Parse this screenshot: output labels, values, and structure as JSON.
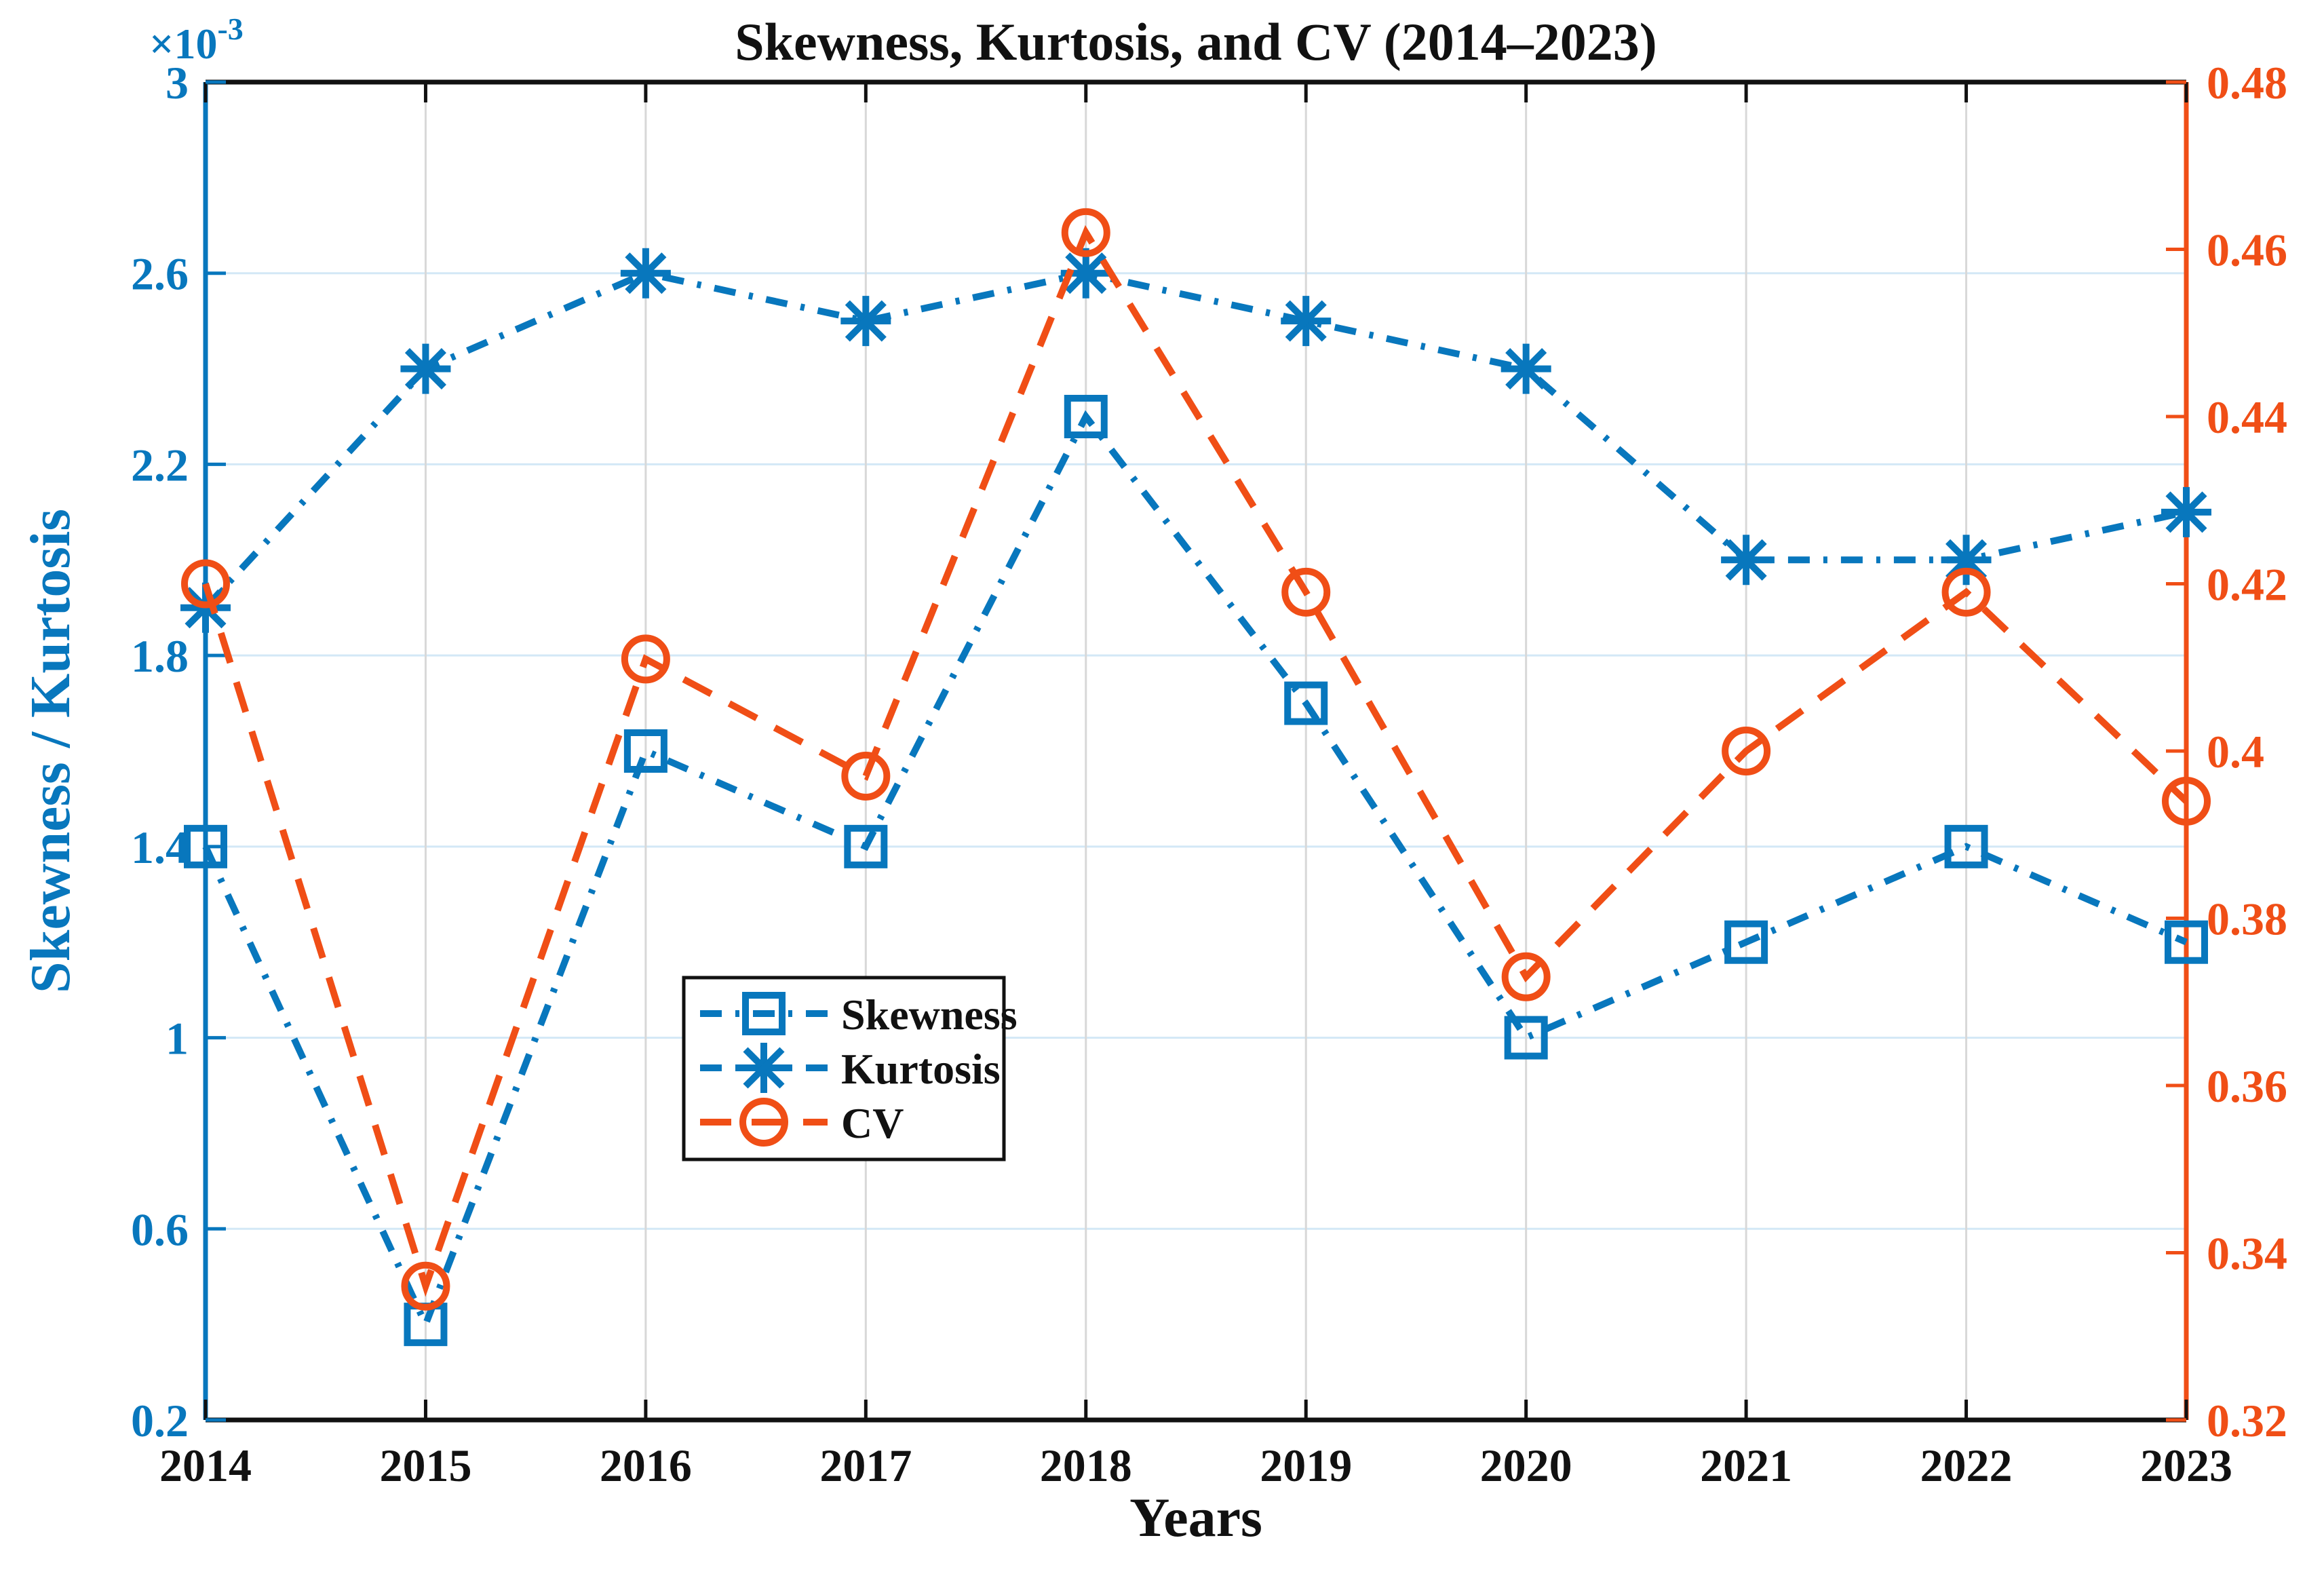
{
  "chart_data": {
    "type": "line",
    "title": "Skewness, Kurtosis, and CV (2014–2023)",
    "xlabel": "Years",
    "ylabel_left": "Skewness / Kurtosis",
    "ylabel_right": "CV",
    "left_axis_multiplier_base": "×10",
    "left_axis_multiplier_exp": "-3",
    "x": [
      2014,
      2015,
      2016,
      2017,
      2018,
      2019,
      2020,
      2021,
      2022,
      2023
    ],
    "series": [
      {
        "name": "Skewness",
        "axis": "left",
        "marker": "square",
        "linestyle": "dashdot",
        "color": "#0877bd",
        "values": [
          0.0014,
          0.0004,
          0.0016,
          0.0014,
          0.0023,
          0.0017,
          0.001,
          0.0012,
          0.0014,
          0.0012
        ],
        "values_e3": [
          1.4,
          0.4,
          1.6,
          1.4,
          2.3,
          1.7,
          1.0,
          1.2,
          1.4,
          1.2
        ]
      },
      {
        "name": "Kurtosis",
        "axis": "left",
        "marker": "asterisk",
        "linestyle": "dashdot",
        "color": "#0877bd",
        "values": [
          0.0019,
          0.0024,
          0.0026,
          0.0025,
          0.0026,
          0.0025,
          0.0024,
          0.002,
          0.002,
          0.0021
        ],
        "values_e3": [
          1.9,
          2.4,
          2.6,
          2.5,
          2.6,
          2.5,
          2.4,
          2.0,
          2.0,
          2.1
        ]
      },
      {
        "name": "CV",
        "axis": "right",
        "marker": "circle",
        "linestyle": "dashed",
        "color": "#f04e16",
        "values": [
          0.42,
          0.336,
          0.411,
          0.397,
          0.462,
          0.419,
          0.373,
          0.4,
          0.419,
          0.394
        ]
      }
    ],
    "left_axis": {
      "min": 0.2,
      "max": 3.0,
      "scale": "1e-3",
      "tick_values": [
        0.2,
        0.6,
        1.0,
        1.4,
        1.8,
        2.2,
        2.6,
        3.0
      ],
      "tick_labels": [
        "0.2",
        "0.6",
        "1",
        "1.4",
        "1.8",
        "2.2",
        "2.6",
        "3"
      ],
      "color": "#0877bd"
    },
    "right_axis": {
      "min": 0.32,
      "max": 0.48,
      "tick_values": [
        0.32,
        0.34,
        0.36,
        0.38,
        0.4,
        0.42,
        0.44,
        0.46,
        0.48
      ],
      "tick_labels": [
        "0.32",
        "0.34",
        "0.36",
        "0.38",
        "0.4",
        "0.42",
        "0.44",
        "0.46",
        "0.48"
      ],
      "color": "#f04e16"
    },
    "x_axis": {
      "tick_labels": [
        "2014",
        "2015",
        "2016",
        "2017",
        "2018",
        "2019",
        "2020",
        "2021",
        "2022",
        "2023"
      ],
      "color": "#111111"
    },
    "grid": {
      "horizontal_color": "#d3e8f6",
      "vertical_color": "#d8d8d8",
      "on": true
    },
    "legend": {
      "entries": [
        "Skewness",
        "Kurtosis",
        "CV"
      ],
      "position": "inside-center-left",
      "border_color": "#111111"
    },
    "title_color": "#111111"
  }
}
